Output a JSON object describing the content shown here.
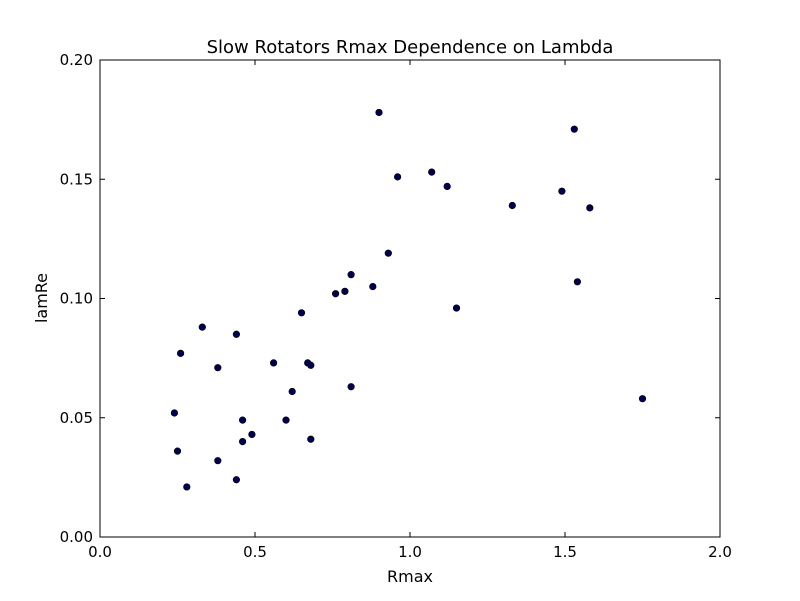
{
  "chart_data": {
    "type": "scatter",
    "title": "Slow Rotators Rmax Dependence on Lambda",
    "xlabel": "Rmax",
    "ylabel": "lamRe",
    "xlim": [
      0.0,
      2.0
    ],
    "ylim": [
      0.0,
      0.2
    ],
    "xticks": [
      0.0,
      0.5,
      1.0,
      1.5,
      2.0
    ],
    "xtick_labels": [
      "0.0",
      "0.5",
      "1.0",
      "1.5",
      "2.0"
    ],
    "yticks": [
      0.0,
      0.05,
      0.1,
      0.15,
      0.2
    ],
    "ytick_labels": [
      "0.00",
      "0.05",
      "0.10",
      "0.15",
      "0.20"
    ],
    "grid": false,
    "marker_color": "#00004d",
    "points": [
      {
        "x": 0.24,
        "y": 0.052
      },
      {
        "x": 0.25,
        "y": 0.036
      },
      {
        "x": 0.26,
        "y": 0.077
      },
      {
        "x": 0.28,
        "y": 0.021
      },
      {
        "x": 0.33,
        "y": 0.088
      },
      {
        "x": 0.38,
        "y": 0.071
      },
      {
        "x": 0.38,
        "y": 0.032
      },
      {
        "x": 0.44,
        "y": 0.085
      },
      {
        "x": 0.44,
        "y": 0.024
      },
      {
        "x": 0.46,
        "y": 0.049
      },
      {
        "x": 0.46,
        "y": 0.04
      },
      {
        "x": 0.49,
        "y": 0.043
      },
      {
        "x": 0.56,
        "y": 0.073
      },
      {
        "x": 0.6,
        "y": 0.049
      },
      {
        "x": 0.62,
        "y": 0.061
      },
      {
        "x": 0.65,
        "y": 0.094
      },
      {
        "x": 0.67,
        "y": 0.073
      },
      {
        "x": 0.68,
        "y": 0.072
      },
      {
        "x": 0.68,
        "y": 0.041
      },
      {
        "x": 0.76,
        "y": 0.102
      },
      {
        "x": 0.79,
        "y": 0.103
      },
      {
        "x": 0.81,
        "y": 0.11
      },
      {
        "x": 0.81,
        "y": 0.063
      },
      {
        "x": 0.88,
        "y": 0.105
      },
      {
        "x": 0.9,
        "y": 0.178
      },
      {
        "x": 0.93,
        "y": 0.119
      },
      {
        "x": 0.96,
        "y": 0.151
      },
      {
        "x": 1.07,
        "y": 0.153
      },
      {
        "x": 1.12,
        "y": 0.147
      },
      {
        "x": 1.15,
        "y": 0.096
      },
      {
        "x": 1.33,
        "y": 0.139
      },
      {
        "x": 1.49,
        "y": 0.145
      },
      {
        "x": 1.53,
        "y": 0.171
      },
      {
        "x": 1.54,
        "y": 0.107
      },
      {
        "x": 1.58,
        "y": 0.138
      },
      {
        "x": 1.75,
        "y": 0.058
      }
    ]
  }
}
